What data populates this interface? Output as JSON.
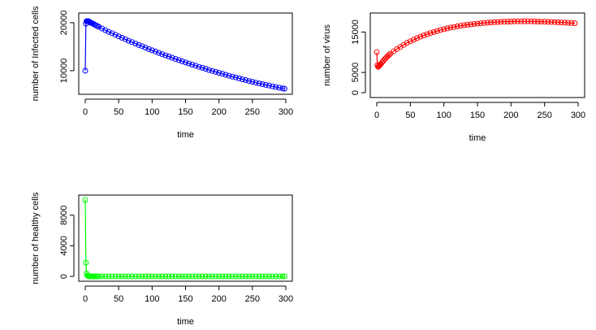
{
  "chart_data": [
    {
      "type": "line",
      "xlabel": "time",
      "ylabel": "number of Infected cells",
      "xlim": [
        0,
        300
      ],
      "ylim": [
        6100,
        21000
      ],
      "xticks": [
        0,
        50,
        100,
        150,
        200,
        250,
        300
      ],
      "yticks": [
        10000,
        20000
      ],
      "marker": "open-circle",
      "color": "#0000ff",
      "series": [
        {
          "x": [
            0,
            1,
            2,
            3,
            4,
            5,
            6,
            7,
            8,
            9,
            10,
            12,
            14,
            16,
            18,
            20,
            25,
            30,
            35,
            40,
            45,
            50,
            55,
            60,
            65,
            70,
            75,
            80,
            85,
            90,
            95,
            100,
            105,
            110,
            115,
            120,
            125,
            130,
            135,
            140,
            145,
            150,
            155,
            160,
            165,
            170,
            175,
            180,
            185,
            190,
            195,
            200,
            205,
            210,
            215,
            220,
            225,
            230,
            235,
            240,
            245,
            250,
            255,
            260,
            265,
            270,
            275,
            280,
            285,
            290,
            295,
            298
          ],
          "values": [
            10000,
            19800,
            20300,
            20300,
            20300,
            20300,
            20200,
            20100,
            20000,
            19950,
            19900,
            19750,
            19600,
            19450,
            19300,
            19150,
            18800,
            18450,
            18100,
            17800,
            17500,
            17150,
            16850,
            16550,
            16250,
            15950,
            15650,
            15350,
            15100,
            14800,
            14500,
            14250,
            14000,
            13700,
            13450,
            13200,
            12950,
            12700,
            12450,
            12200,
            11950,
            11700,
            11500,
            11250,
            11050,
            10800,
            10600,
            10400,
            10150,
            9950,
            9750,
            9550,
            9350,
            9150,
            8950,
            8750,
            8600,
            8400,
            8200,
            8050,
            7850,
            7700,
            7500,
            7350,
            7200,
            7050,
            6900,
            6750,
            6600,
            6450,
            6300,
            6250
          ]
        }
      ]
    },
    {
      "type": "line",
      "xlabel": "time",
      "ylabel": "number of virus",
      "xlim": [
        0,
        300
      ],
      "ylim": [
        0,
        18500
      ],
      "xticks": [
        0,
        50,
        100,
        150,
        200,
        250,
        300
      ],
      "yticks": [
        0,
        5000,
        15000
      ],
      "marker": "open-circle",
      "color": "#ff0000",
      "series": [
        {
          "x": [
            0,
            1,
            2,
            3,
            4,
            5,
            6,
            8,
            10,
            12,
            14,
            16,
            18,
            20,
            25,
            30,
            35,
            40,
            45,
            50,
            55,
            60,
            65,
            70,
            75,
            80,
            85,
            90,
            95,
            100,
            105,
            110,
            115,
            120,
            125,
            130,
            135,
            140,
            145,
            150,
            155,
            160,
            165,
            170,
            175,
            180,
            185,
            190,
            195,
            200,
            205,
            210,
            215,
            220,
            225,
            230,
            235,
            240,
            245,
            250,
            255,
            260,
            265,
            270,
            275,
            280,
            285,
            290,
            295
          ],
          "values": [
            10000,
            6800,
            6400,
            6500,
            6700,
            6900,
            7100,
            7500,
            7900,
            8300,
            8600,
            9000,
            9300,
            9600,
            10200,
            10800,
            11300,
            11800,
            12300,
            12700,
            13100,
            13500,
            13850,
            14150,
            14450,
            14750,
            15000,
            15250,
            15500,
            15700,
            15900,
            16100,
            16250,
            16400,
            16550,
            16700,
            16800,
            16900,
            17000,
            17100,
            17180,
            17250,
            17320,
            17380,
            17430,
            17480,
            17520,
            17550,
            17580,
            17600,
            17620,
            17630,
            17640,
            17640,
            17640,
            17630,
            17620,
            17600,
            17580,
            17550,
            17520,
            17490,
            17450,
            17410,
            17370,
            17330,
            17280,
            17230,
            17180
          ]
        }
      ]
    },
    {
      "type": "line",
      "xlabel": "time",
      "ylabel": "number of healthy cells",
      "xlim": [
        0,
        300
      ],
      "ylim": [
        0,
        10000
      ],
      "xticks": [
        0,
        50,
        100,
        150,
        200,
        250,
        300
      ],
      "yticks": [
        0,
        4000,
        8000
      ],
      "marker": "open-circle",
      "color": "#00ff00",
      "series": [
        {
          "x": [
            0,
            1,
            2,
            3,
            4,
            5,
            6,
            7,
            8,
            10,
            12,
            14,
            16,
            18,
            20,
            25,
            30,
            35,
            40,
            45,
            50,
            55,
            60,
            65,
            70,
            75,
            80,
            85,
            90,
            95,
            100,
            105,
            110,
            115,
            120,
            125,
            130,
            135,
            140,
            145,
            150,
            155,
            160,
            165,
            170,
            175,
            180,
            185,
            190,
            195,
            200,
            205,
            210,
            215,
            220,
            225,
            230,
            235,
            240,
            245,
            250,
            255,
            260,
            265,
            270,
            275,
            280,
            285,
            290,
            295,
            298
          ],
          "values": [
            10000,
            1800,
            400,
            120,
            50,
            20,
            10,
            5,
            3,
            2,
            1,
            1,
            1,
            1,
            1,
            1,
            1,
            1,
            1,
            1,
            1,
            1,
            1,
            1,
            1,
            1,
            1,
            1,
            1,
            1,
            1,
            1,
            1,
            1,
            1,
            1,
            1,
            1,
            1,
            1,
            1,
            1,
            1,
            1,
            1,
            1,
            1,
            1,
            1,
            1,
            1,
            1,
            1,
            1,
            1,
            1,
            1,
            1,
            1,
            1,
            1,
            1,
            1,
            1,
            1,
            1,
            1,
            1,
            1,
            1,
            1
          ]
        }
      ]
    }
  ]
}
